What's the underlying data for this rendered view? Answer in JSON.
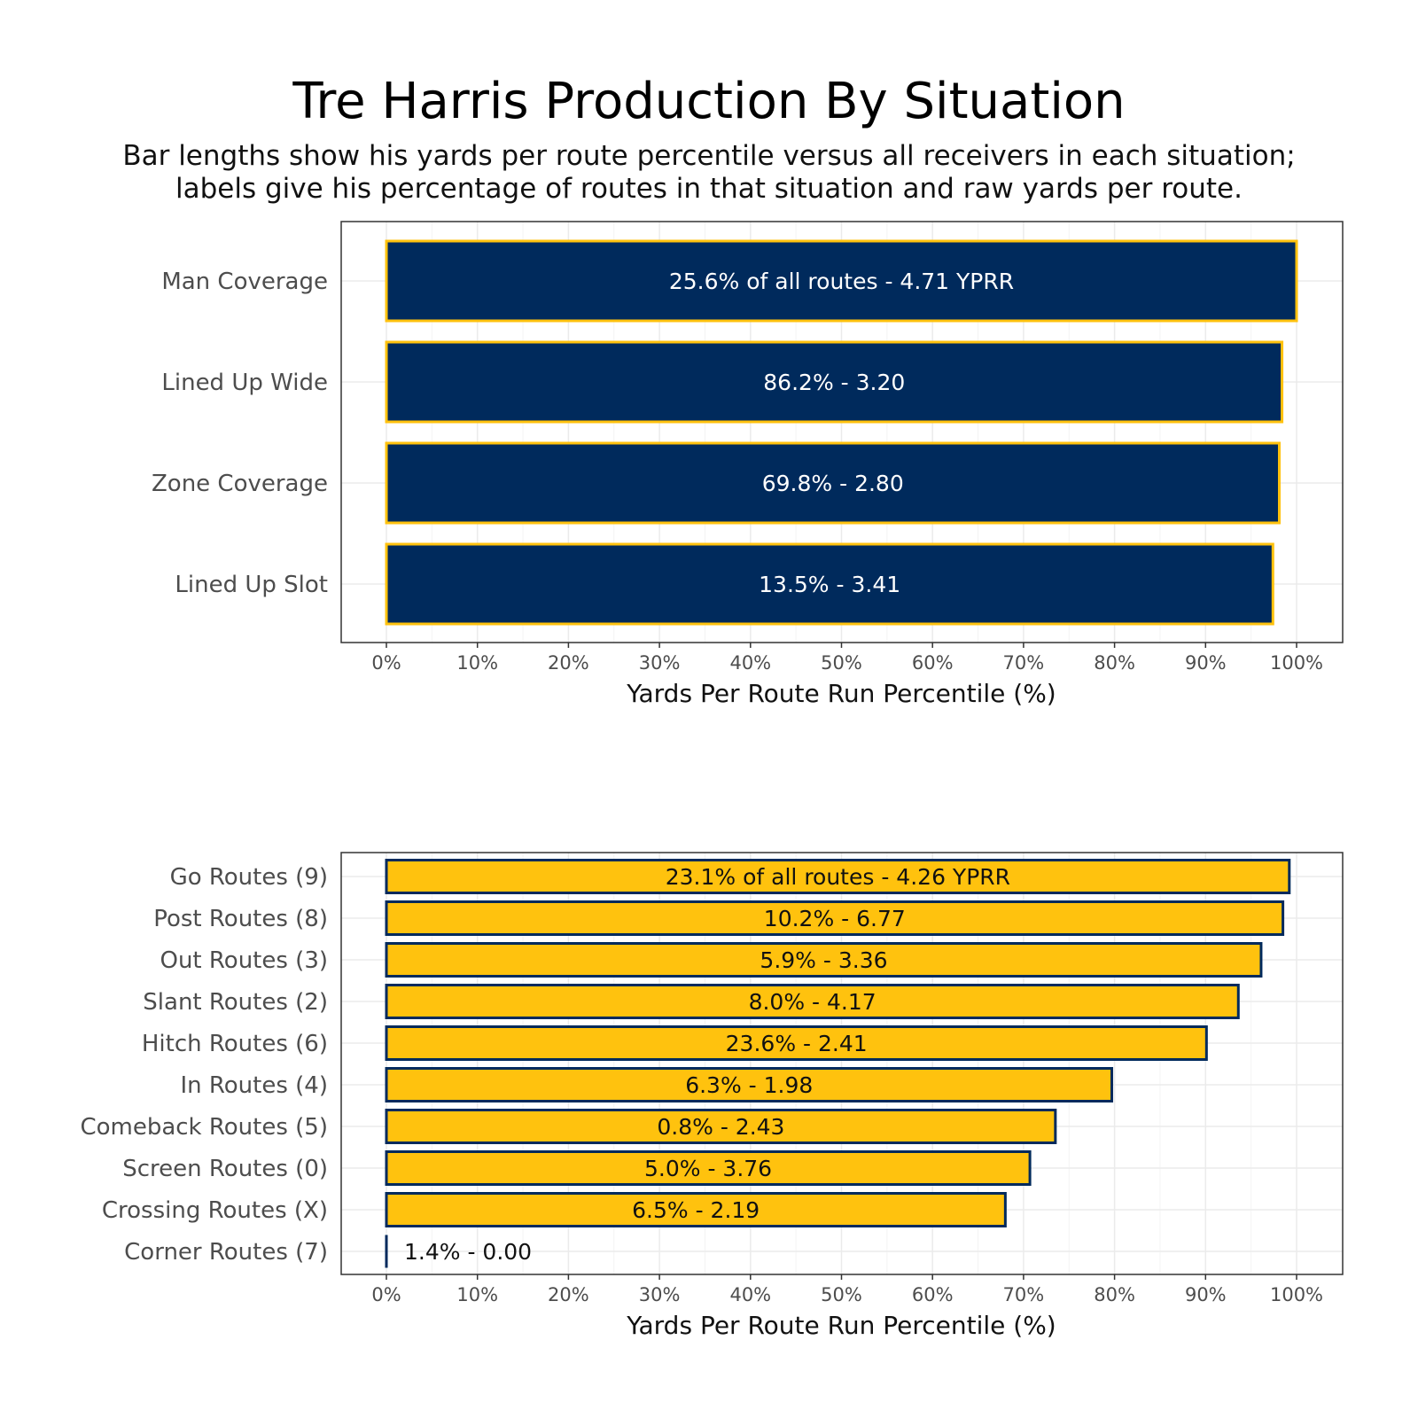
{
  "title": "Tre Harris Production By Situation",
  "subtitle_line1": "Bar lengths show his yards per route percentile versus all receivers in each situation;",
  "subtitle_line2": "labels give his percentage of routes in that situation and raw yards per route.",
  "colors": {
    "navy": "#002a5c",
    "gold": "#ffc20e",
    "grid": "#ebebeb",
    "panel_border": "#333333"
  },
  "chart_data": [
    {
      "type": "bar",
      "orientation": "horizontal",
      "xlabel": "Yards Per Route Run Percentile (%)",
      "xlim": [
        0,
        100
      ],
      "xticks": [
        "0%",
        "10%",
        "20%",
        "30%",
        "40%",
        "50%",
        "60%",
        "70%",
        "80%",
        "90%",
        "100%"
      ],
      "grid": true,
      "fill": "#002a5c",
      "outline": "#ffc20e",
      "categories": [
        "Man Coverage",
        "Lined Up Wide",
        "Zone Coverage",
        "Lined Up Slot"
      ],
      "values": [
        100.0,
        98.4,
        98.1,
        97.4
      ],
      "labels": [
        "25.6% of all routes - 4.71 YPRR",
        "86.2% - 3.20",
        "69.8% - 2.80",
        "13.5% - 3.41"
      ]
    },
    {
      "type": "bar",
      "orientation": "horizontal",
      "xlabel": "Yards Per Route Run Percentile (%)",
      "xlim": [
        0,
        100
      ],
      "xticks": [
        "0%",
        "10%",
        "20%",
        "30%",
        "40%",
        "50%",
        "60%",
        "70%",
        "80%",
        "90%",
        "100%"
      ],
      "grid": true,
      "fill": "#ffc20e",
      "outline": "#002a5c",
      "categories": [
        "Go Routes (9)",
        "Post Routes (8)",
        "Out Routes (3)",
        "Slant Routes (2)",
        "Hitch Routes (6)",
        "In Routes (4)",
        "Comeback Routes (5)",
        "Screen Routes (0)",
        "Crossing Routes (X)",
        "Corner Routes (7)"
      ],
      "values": [
        99.2,
        98.5,
        96.1,
        93.6,
        90.1,
        79.7,
        73.5,
        70.7,
        68.0,
        0.0
      ],
      "labels": [
        "23.1% of all routes - 4.26 YPRR",
        "10.2% - 6.77",
        "5.9% - 3.36",
        "8.0% - 4.17",
        "23.6% - 2.41",
        "6.3% - 1.98",
        "0.8% - 2.43",
        "5.0% - 3.76",
        "6.5% - 2.19",
        "1.4% - 0.00"
      ]
    }
  ]
}
